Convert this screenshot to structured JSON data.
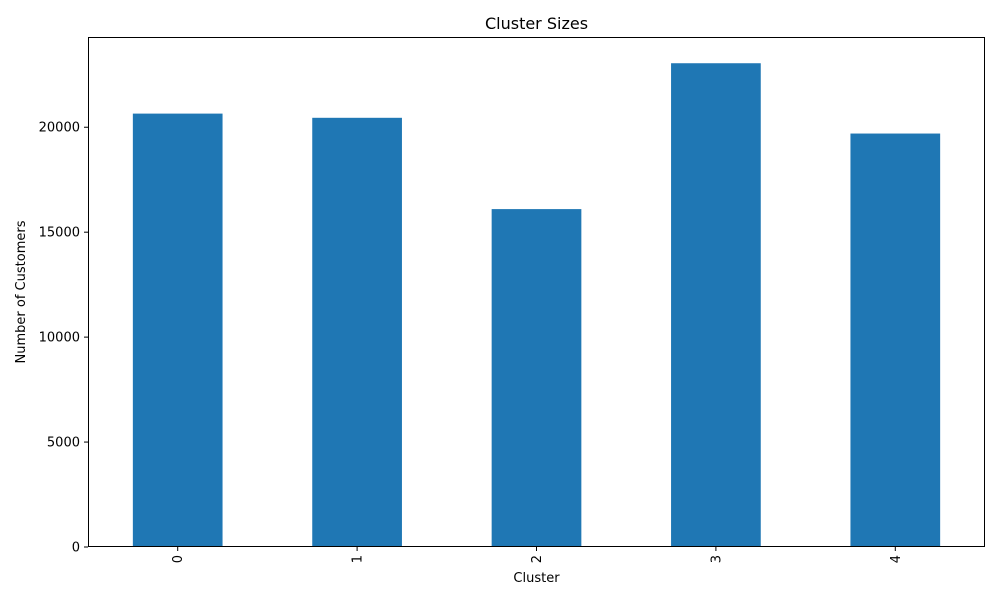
{
  "chart_data": {
    "type": "bar",
    "title": "Cluster Sizes",
    "xlabel": "Cluster",
    "ylabel": "Number of Customers",
    "categories": [
      "0",
      "1",
      "2",
      "3",
      "4"
    ],
    "values": [
      20650,
      20450,
      16100,
      23050,
      19700
    ],
    "ylim": [
      0,
      24300
    ],
    "yticks": [
      0,
      5000,
      10000,
      15000,
      20000
    ],
    "ytick_labels": [
      "0",
      "5000",
      "10000",
      "15000",
      "20000"
    ],
    "bar_color": "#1f77b4",
    "grid": false,
    "legend": "none",
    "xtick_rotation": "vertical"
  }
}
